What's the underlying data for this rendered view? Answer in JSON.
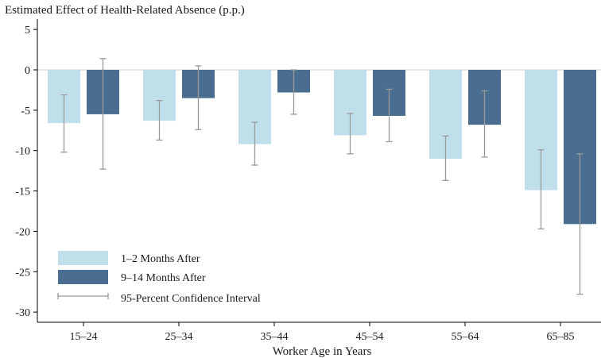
{
  "chart_data": {
    "type": "bar",
    "title": "Estimated Effect of Health-Related Absence (p.p.)",
    "xlabel": "Worker Age in Years",
    "ylabel": "",
    "ylim": [
      -31,
      6
    ],
    "yticks": [
      5,
      0,
      -5,
      -10,
      -15,
      -20,
      -25,
      -30
    ],
    "ytick_labels": [
      "5",
      "0",
      "-5",
      "-10",
      "-15",
      "-20",
      "-25",
      "-30"
    ],
    "categories": [
      "15–24",
      "25–34",
      "35–44",
      "45–54",
      "55–64",
      "65–85"
    ],
    "series": [
      {
        "name": "1–2 Months After",
        "color": "#bfe0ea",
        "values": [
          -6.6,
          -6.3,
          -9.2,
          -8.1,
          -11.0,
          -14.9
        ],
        "ci_low": [
          -10.2,
          -8.7,
          -11.8,
          -10.4,
          -13.7,
          -19.7
        ],
        "ci_high": [
          -3.1,
          -3.8,
          -6.5,
          -5.4,
          -8.2,
          -9.9
        ]
      },
      {
        "name": "9–14 Months After",
        "color": "#4a6e8f",
        "values": [
          -5.5,
          -3.5,
          -2.8,
          -5.7,
          -6.8,
          -19.1
        ],
        "ci_low": [
          -12.3,
          -7.4,
          -5.5,
          -8.9,
          -10.8,
          -27.8
        ],
        "ci_high": [
          1.4,
          0.5,
          0.0,
          -2.4,
          -2.6,
          -10.4
        ]
      }
    ],
    "ci_label": "95-Percent Confidence Interval",
    "ci_color": "#999999",
    "legend_position": "bottom-left"
  }
}
